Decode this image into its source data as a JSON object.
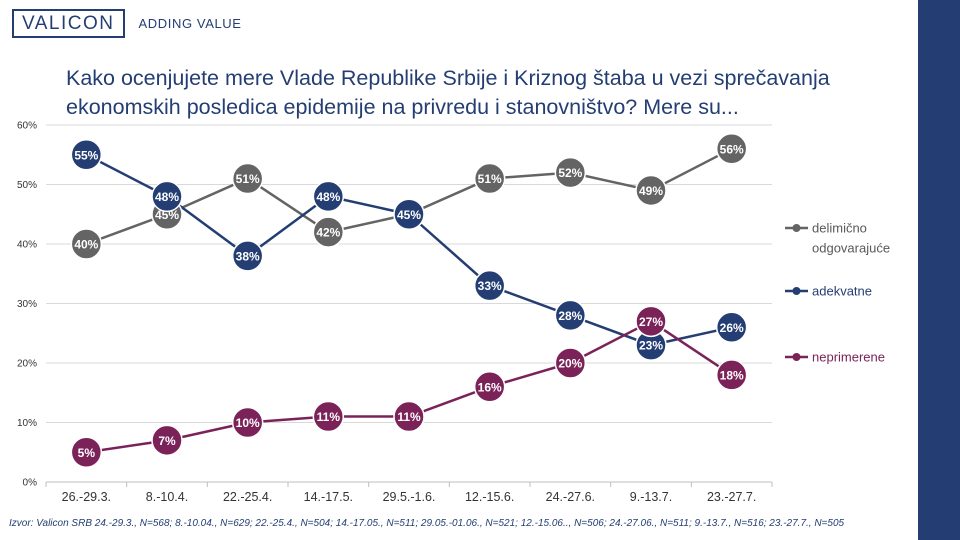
{
  "header": {
    "brand": "VALICON",
    "tagline": "ADDING VALUE"
  },
  "title": "Kako ocenjujete mere Vlade Republike Srbije i Kriznog štaba u vezi sprečavanja ekonomskih posledica epidemije na privredu i stanovništvo? Mere su...",
  "source": "Izvor: Valicon SRB 24.-29.3., N=568; 8.-10.04., N=629; 22.-25.4., N=504; 14.-17.05., N=511; 29.05.-01.06., N=521; 12.-15.06.., N=506; 24.-27.06., N=511; 9.-13.7., N=516; 23.-27.7., N=505",
  "colors": {
    "brand": "#243e73",
    "delimicno": "#646464",
    "adekvatne": "#243e73",
    "neprimerene": "#7b2259"
  },
  "chart_data": {
    "type": "line",
    "categories": [
      "26.-29.3.",
      "8.-10.4.",
      "22.-25.4.",
      "14.-17.5.",
      "29.5.-1.6.",
      "12.-15.6.",
      "24.-27.6.",
      "9.-13.7.",
      "23.-27.7."
    ],
    "ylim": [
      0,
      60
    ],
    "yticks": [
      "0%",
      "10%",
      "20%",
      "30%",
      "40%",
      "50%",
      "60%"
    ],
    "grid": true,
    "legend_position": "right",
    "series": [
      {
        "name": "delimično odgovarajuće",
        "color": "#646464",
        "values": [
          40,
          45,
          51,
          42,
          45,
          51,
          52,
          49,
          56
        ],
        "labels": [
          "40%",
          "45%",
          "51%",
          "42%",
          "45%",
          "51%",
          "52%",
          "49%",
          "56%"
        ]
      },
      {
        "name": "adekvatne",
        "color": "#243e73",
        "values": [
          55,
          48,
          38,
          48,
          45,
          33,
          28,
          23,
          26
        ],
        "labels": [
          "55%",
          "48%",
          "38%",
          "48%",
          "45%",
          "33%",
          "28%",
          "23%",
          "26%"
        ]
      },
      {
        "name": "neprimerene",
        "color": "#7b2259",
        "values": [
          5,
          7,
          10,
          11,
          11,
          16,
          20,
          27,
          18
        ],
        "labels": [
          "5%",
          "7%",
          "10%",
          "11%",
          "11%",
          "16%",
          "20%",
          "27%",
          "18%"
        ]
      }
    ],
    "legend": [
      {
        "lines": [
          "delimično",
          "odgovarajuće"
        ],
        "color": "#646464"
      },
      {
        "lines": [
          "adekvatne"
        ],
        "color": "#243e73"
      },
      {
        "lines": [
          "neprimerene"
        ],
        "color": "#7b2259"
      }
    ]
  }
}
